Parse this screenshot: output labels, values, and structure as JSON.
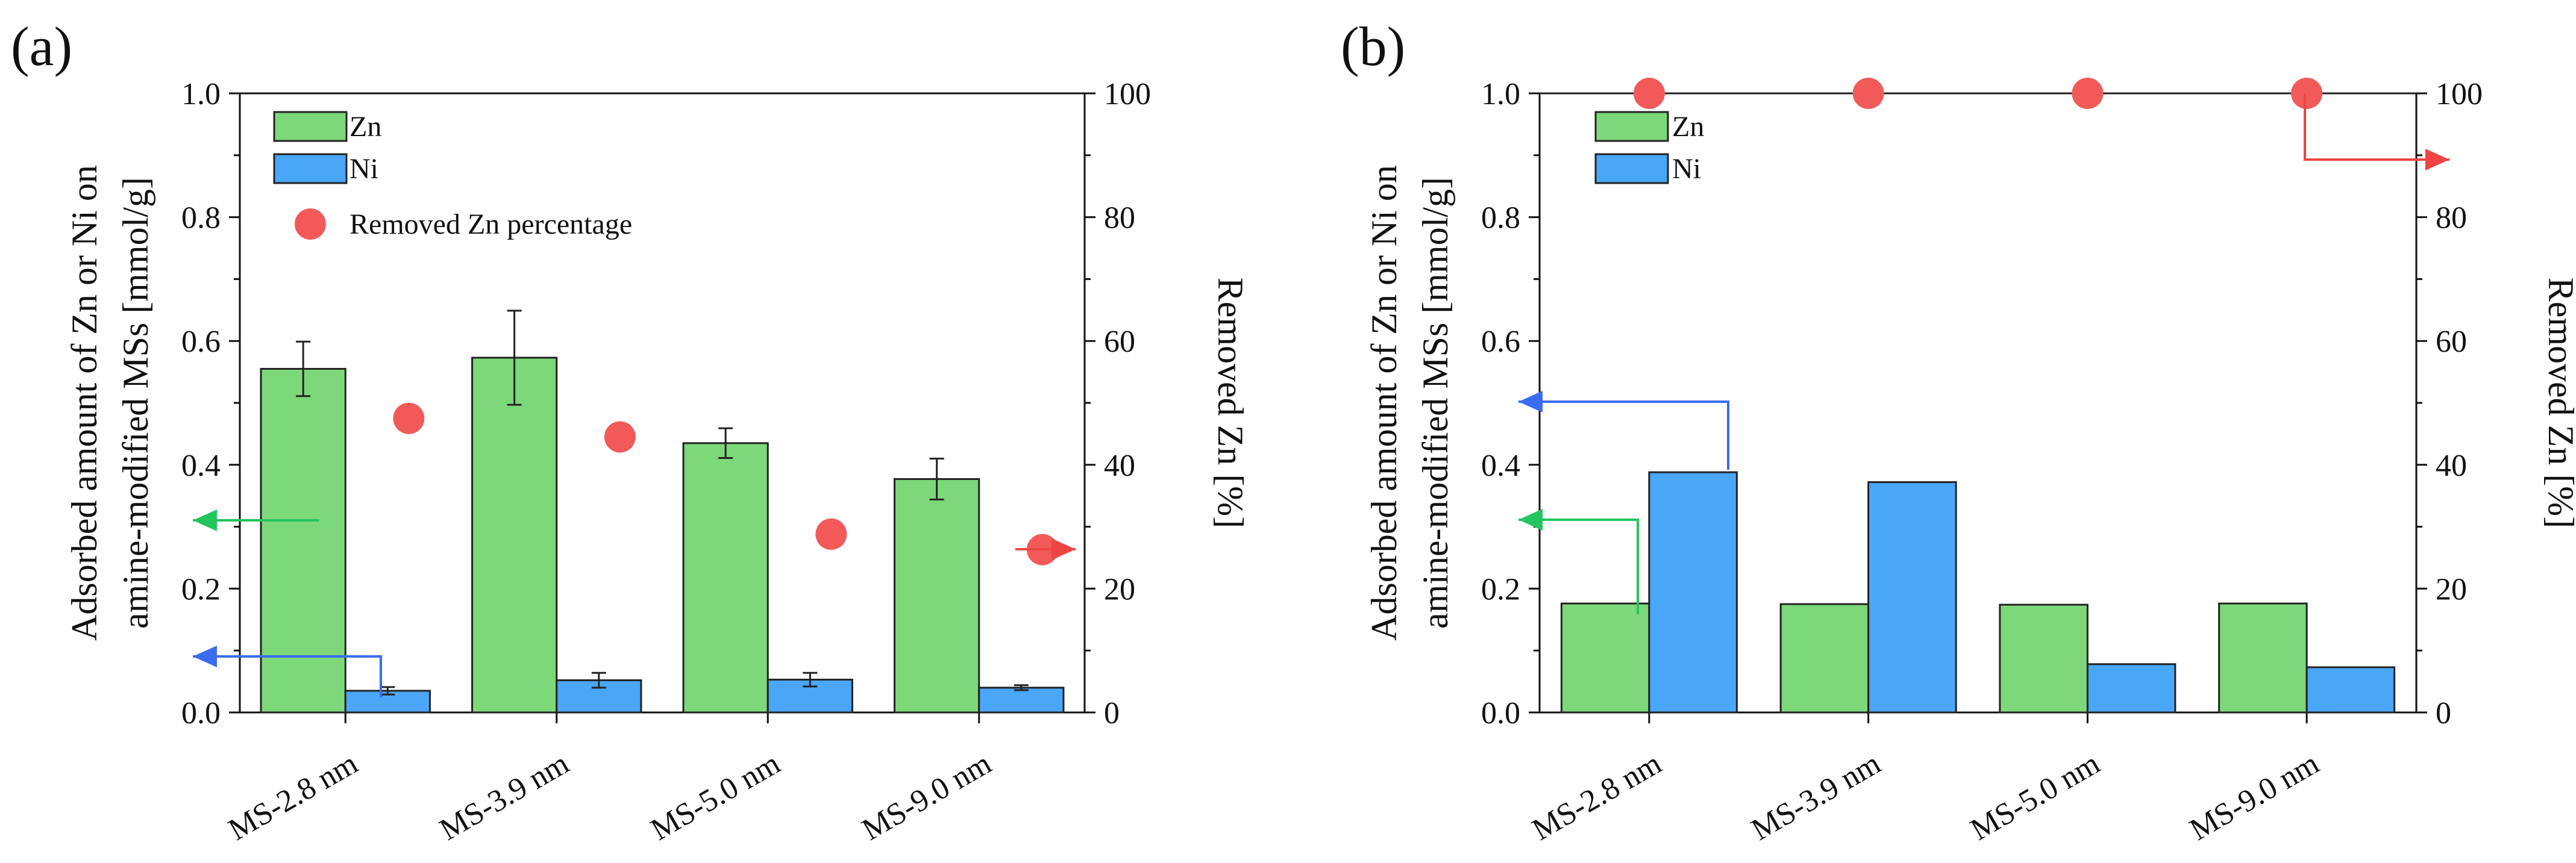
{
  "chart_data": [
    {
      "panel": "(a)",
      "type": "bar",
      "categories": [
        "MS-2.8 nm",
        "MS-3.9 nm",
        "MS-5.0 nm",
        "MS-9.0 nm"
      ],
      "series": [
        {
          "name": "Zn",
          "axis": "left",
          "color": "#7dd87a",
          "values": [
            0.555,
            0.573,
            0.435,
            0.377
          ],
          "errors": [
            0.044,
            0.076,
            0.024,
            0.033
          ]
        },
        {
          "name": "Ni",
          "axis": "left",
          "color": "#4aa6f7",
          "values": [
            0.035,
            0.052,
            0.053,
            0.04
          ],
          "errors": [
            0.006,
            0.012,
            0.011,
            0.004
          ]
        },
        {
          "name": "Removed Zn percentage",
          "axis": "right",
          "kind": "scatter",
          "color": "#f25a5a",
          "values": [
            47.5,
            44.5,
            28.8,
            26.3
          ]
        }
      ],
      "ylabel": "Adsorbed amount of Zn or Ni on amine-modified MSs [mmol/g]",
      "ylabel_lines": [
        "Adsorbed amount of Zn or Ni on",
        "amine-modified MSs [mmol/g]"
      ],
      "y2label": "Removed Zn [%]",
      "ylim": [
        0,
        1.0
      ],
      "y2lim": [
        0,
        100
      ],
      "yticks": [
        "0.0",
        "0.2",
        "0.4",
        "0.6",
        "0.8",
        "1.0"
      ],
      "y2ticks": [
        "0",
        "20",
        "40",
        "60",
        "80",
        "100"
      ],
      "legend": [
        "Zn",
        "Ni",
        "Removed Zn percentage"
      ],
      "legend_position": "top-left"
    },
    {
      "panel": "(b)",
      "type": "bar",
      "categories": [
        "MS-2.8 nm",
        "MS-3.9 nm",
        "MS-5.0 nm",
        "MS-9.0 nm"
      ],
      "series": [
        {
          "name": "Zn",
          "axis": "left",
          "color": "#7dd87a",
          "values": [
            0.176,
            0.175,
            0.174,
            0.176
          ]
        },
        {
          "name": "Ni",
          "axis": "left",
          "color": "#4aa6f7",
          "values": [
            0.388,
            0.372,
            0.078,
            0.073
          ]
        },
        {
          "name": "Removed Zn percentage",
          "axis": "right",
          "kind": "line-scatter",
          "color": "#f25a5a",
          "values": [
            100,
            100,
            100,
            100
          ]
        }
      ],
      "ylabel": "Adsorbed amount of Zn or Ni on amine-modified MSs [mmol/g]",
      "ylabel_lines": [
        "Adsorbed amount of Zn or Ni on",
        "amine-modified MSs [mmol/g]"
      ],
      "y2label": "Removed Zn [%]",
      "ylim": [
        0,
        1.0
      ],
      "y2lim": [
        0,
        100
      ],
      "yticks": [
        "0.0",
        "0.2",
        "0.4",
        "0.6",
        "0.8",
        "1.0"
      ],
      "y2ticks": [
        "0",
        "20",
        "40",
        "60",
        "80",
        "100"
      ],
      "legend": [
        "Zn",
        "Ni"
      ],
      "legend_position": "top-left"
    }
  ]
}
